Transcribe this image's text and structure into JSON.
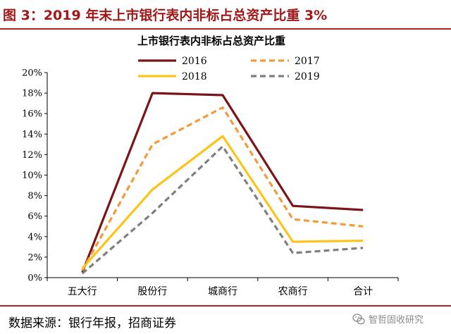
{
  "figure": {
    "title": "图 3：2019 年末上市银行表内非标占总资产比重 3%",
    "source": "数据来源：银行年报，招商证券",
    "watermark": "智哲固收研究"
  },
  "colors": {
    "2016": "#7b1416",
    "2017": "#f39a3c",
    "2018": "#fcc419",
    "2019": "#7f7f7f",
    "accent_rule": "#b22222"
  },
  "icons": {
    "watermark": "wechat-icon"
  },
  "chart_data": {
    "type": "line",
    "title": "上市银行表内非标占总资产比重",
    "xlabel": "",
    "ylabel": "",
    "categories": [
      "五大行",
      "股份行",
      "城商行",
      "农商行",
      "合计"
    ],
    "ylim": [
      0,
      20
    ],
    "yticks": [
      "0%",
      "2%",
      "4%",
      "6%",
      "8%",
      "10%",
      "12%",
      "14%",
      "16%",
      "18%",
      "20%"
    ],
    "grid": false,
    "legend_position": "top",
    "series": [
      {
        "name": "2016",
        "values": [
          0.5,
          18.0,
          17.8,
          7.0,
          6.6
        ],
        "style": "solid"
      },
      {
        "name": "2017",
        "values": [
          0.7,
          13.0,
          16.6,
          5.7,
          5.0
        ],
        "style": "dashed"
      },
      {
        "name": "2018",
        "values": [
          0.9,
          8.6,
          13.8,
          3.5,
          3.6
        ],
        "style": "solid"
      },
      {
        "name": "2019",
        "values": [
          0.4,
          6.3,
          12.8,
          2.4,
          2.9
        ],
        "style": "dashed"
      }
    ]
  }
}
